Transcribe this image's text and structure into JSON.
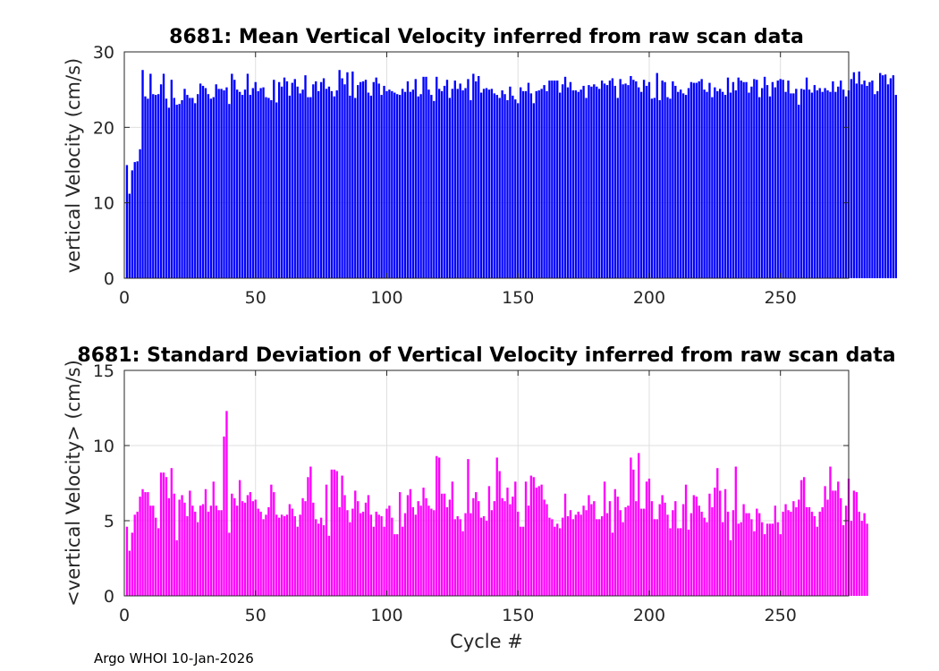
{
  "footer": "Argo WHOI 10-Jan-2026",
  "colors": {
    "mean": "#0000ff",
    "std": "#ff00ff",
    "grid": "#dfdfdf",
    "axis": "#262626"
  },
  "chart_data": [
    {
      "type": "bar",
      "title": "8681: Mean Vertical Velocity inferred from raw scan data",
      "xlabel": "",
      "ylabel": "vertical Velocity (cm/s)",
      "xlim": [
        0,
        276
      ],
      "ylim": [
        0,
        30
      ],
      "xticks": [
        0,
        50,
        100,
        150,
        200,
        250
      ],
      "yticks": [
        0,
        10,
        20,
        30
      ],
      "grid": true,
      "x_start": 1,
      "values": [
        15.0,
        11.2,
        14.3,
        15.4,
        15.5,
        17.1,
        27.6,
        24.1,
        23.8,
        27.1,
        24.4,
        24.3,
        24.4,
        25.7,
        27.1,
        23.8,
        22.6,
        26.3,
        23.9,
        23.0,
        23.1,
        23.6,
        25.1,
        24.3,
        23.9,
        23.9,
        23.2,
        24.4,
        25.8,
        25.5,
        25.2,
        24.4,
        23.8,
        24.0,
        25.7,
        25.1,
        25.1,
        24.9,
        25.3,
        23.1,
        27.1,
        26.3,
        25.0,
        24.7,
        24.3,
        25.0,
        27.1,
        24.3,
        25.2,
        26.0,
        24.8,
        25.2,
        25.3,
        24.0,
        23.9,
        23.6,
        26.3,
        23.3,
        26.0,
        25.4,
        26.6,
        26.1,
        24.2,
        25.9,
        26.4,
        25.4,
        24.5,
        25.0,
        26.9,
        24.0,
        24.0,
        25.7,
        26.1,
        24.8,
        26.0,
        26.5,
        25.1,
        25.4,
        24.8,
        24.1,
        24.9,
        27.6,
        26.5,
        25.7,
        27.3,
        24.2,
        27.4,
        23.9,
        25.6,
        26.0,
        26.1,
        26.3,
        24.6,
        24.2,
        26.0,
        26.6,
        25.8,
        24.3,
        25.5,
        24.8,
        25.0,
        24.8,
        24.6,
        24.4,
        24.3,
        25.1,
        24.7,
        26.1,
        24.7,
        25.0,
        26.4,
        24.1,
        24.4,
        26.7,
        26.7,
        25.0,
        24.3,
        23.5,
        26.7,
        25.1,
        24.8,
        25.5,
        26.3,
        23.9,
        25.1,
        26.2,
        25.1,
        25.8,
        24.9,
        25.2,
        26.4,
        23.6,
        27.1,
        26.1,
        26.8,
        24.6,
        25.1,
        25.2,
        25.0,
        25.1,
        24.5,
        24.3,
        23.9,
        24.9,
        24.4,
        23.6,
        25.4,
        24.2,
        23.7,
        23.2,
        25.3,
        24.8,
        24.8,
        25.9,
        24.5,
        23.2,
        24.8,
        24.9,
        25.1,
        25.6,
        24.8,
        26.2,
        26.2,
        26.2,
        26.2,
        24.6,
        25.7,
        26.7,
        25.3,
        26.0,
        24.9,
        24.9,
        24.7,
        25.0,
        25.5,
        23.9,
        25.6,
        25.4,
        25.7,
        25.4,
        25.1,
        26.2,
        25.8,
        25.6,
        26.2,
        26.5,
        25.5,
        23.9,
        26.4,
        25.7,
        25.8,
        25.6,
        26.8,
        26.3,
        26.1,
        25.3,
        24.7,
        26.3,
        25.5,
        26.0,
        23.8,
        23.9,
        27.2,
        23.6,
        26.2,
        26.0,
        24.0,
        23.8,
        26.1,
        25.5,
        24.7,
        25.0,
        24.5,
        24.3,
        25.2,
        26.0,
        25.9,
        25.9,
        26.1,
        26.4,
        25.0,
        24.7,
        25.9,
        24.0,
        25.3,
        24.8,
        25.1,
        24.7,
        24.3,
        26.6,
        24.6,
        26.0,
        24.9,
        26.6,
        26.2,
        26.0,
        26.0,
        24.6,
        25.4,
        26.4,
        26.3,
        24.0,
        25.2,
        26.7,
        25.6,
        24.1,
        26.0,
        25.3,
        26.2,
        26.4,
        26.3,
        24.7,
        26.2,
        24.5,
        24.5,
        25.1,
        23.0,
        25.1,
        25.0,
        26.6,
        25.0,
        24.6,
        25.6,
        24.9,
        25.2,
        24.7,
        25.2,
        24.9,
        24.7,
        26.1,
        24.7,
        25.4,
        26.2,
        25.0,
        24.1,
        24.9,
        26.4,
        27.3,
        25.8,
        27.4,
        25.7,
        26.2,
        25.5,
        26.0,
        26.2,
        24.4,
        24.8,
        27.2,
        26.9,
        27.0,
        25.7,
        26.5,
        26.9,
        24.3
      ]
    },
    {
      "type": "bar",
      "title": "8681: Standard Deviation of Vertical Velocity inferred from raw scan data",
      "xlabel": "Cycle #",
      "ylabel": "<vertical Velocity> (cm/s)",
      "xlim": [
        0,
        276
      ],
      "ylim": [
        0,
        15
      ],
      "xticks": [
        0,
        50,
        100,
        150,
        200,
        250
      ],
      "yticks": [
        0,
        5,
        10,
        15
      ],
      "grid": true,
      "x_start": 1,
      "values": [
        4.6,
        3.0,
        4.2,
        5.4,
        5.6,
        6.6,
        7.1,
        6.9,
        6.9,
        6.0,
        6.0,
        5.2,
        4.5,
        8.2,
        8.2,
        7.9,
        6.5,
        8.5,
        6.8,
        3.7,
        6.4,
        6.7,
        6.2,
        5.3,
        7.0,
        6.0,
        5.6,
        4.9,
        6.0,
        6.1,
        7.1,
        5.6,
        6.0,
        7.6,
        6.0,
        5.7,
        5.7,
        10.6,
        12.3,
        4.2,
        6.8,
        6.5,
        6.0,
        7.7,
        6.3,
        6.2,
        6.7,
        6.9,
        6.3,
        6.4,
        5.8,
        5.6,
        5.1,
        5.4,
        5.9,
        7.4,
        6.9,
        5.4,
        5.2,
        5.4,
        5.3,
        5.4,
        6.1,
        5.8,
        5.3,
        4.6,
        5.4,
        6.5,
        6.3,
        7.9,
        8.6,
        6.2,
        5.1,
        4.8,
        5.2,
        4.7,
        7.4,
        4.0,
        8.4,
        8.4,
        8.3,
        5.9,
        8.0,
        6.7,
        5.7,
        4.9,
        5.8,
        7.0,
        6.3,
        5.5,
        5.6,
        6.2,
        6.7,
        5.4,
        4.6,
        5.6,
        5.4,
        5.3,
        4.6,
        5.8,
        6.0,
        5.2,
        4.1,
        4.1,
        6.9,
        4.6,
        5.5,
        6.7,
        7.1,
        5.9,
        5.4,
        6.3,
        6.0,
        7.2,
        6.5,
        6.0,
        5.8,
        5.7,
        9.3,
        9.2,
        6.8,
        6.8,
        5.9,
        6.4,
        7.6,
        5.1,
        5.3,
        5.1,
        4.3,
        5.5,
        9.1,
        5.5,
        6.5,
        6.9,
        6.3,
        5.2,
        5.3,
        5.0,
        7.3,
        5.7,
        6.3,
        9.2,
        8.3,
        6.5,
        6.3,
        7.2,
        6.1,
        6.6,
        7.6,
        5.6,
        4.6,
        4.6,
        7.6,
        6.0,
        8.0,
        7.9,
        7.2,
        7.3,
        7.4,
        6.4,
        6.1,
        5.2,
        5.1,
        4.6,
        4.8,
        4.5,
        5.2,
        6.8,
        5.3,
        5.7,
        5.1,
        5.4,
        5.6,
        5.4,
        6.0,
        5.7,
        6.7,
        6.1,
        6.3,
        5.1,
        5.1,
        5.3,
        7.6,
        5.5,
        6.3,
        4.2,
        7.1,
        6.6,
        5.7,
        4.9,
        5.9,
        6.0,
        9.2,
        8.4,
        6.3,
        9.5,
        5.8,
        5.8,
        7.6,
        7.8,
        6.3,
        5.1,
        5.1,
        6.1,
        6.7,
        6.2,
        5.4,
        4.5,
        5.7,
        6.3,
        4.5,
        4.5,
        6.1,
        7.4,
        4.4,
        5.5,
        6.7,
        6.6,
        6.0,
        5.6,
        5.2,
        4.9,
        6.8,
        5.9,
        7.2,
        8.5,
        7.0,
        4.9,
        7.1,
        5.6,
        3.7,
        5.7,
        8.6,
        4.8,
        4.9,
        6.1,
        5.5,
        5.5,
        5.1,
        4.3,
        5.8,
        5.5,
        4.9,
        4.1,
        4.8,
        4.8,
        4.8,
        6.0,
        4.9,
        4.1,
        5.6,
        6.1,
        5.7,
        5.6,
        6.3,
        5.9,
        6.4,
        7.7,
        7.9,
        5.9,
        5.9,
        5.6,
        5.3,
        4.6,
        5.6,
        5.9,
        7.3,
        6.4,
        8.6,
        7.0,
        7.0,
        7.6,
        6.5,
        4.7,
        6.0,
        7.8,
        5.0,
        7.0,
        6.9,
        5.6,
        5.0,
        5.5,
        4.8
      ]
    }
  ]
}
